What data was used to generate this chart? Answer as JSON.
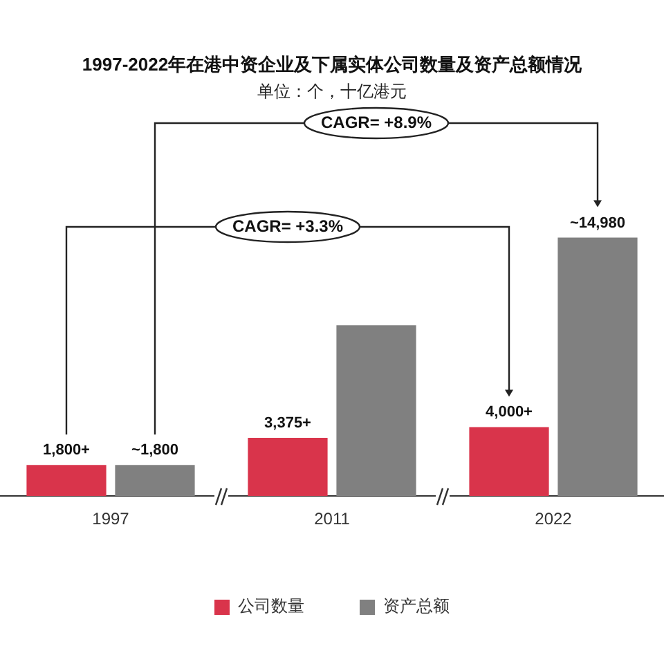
{
  "chart_data": {
    "type": "bar",
    "title": "1997-2022年在港中资企业及下属实体公司数量及资产总额情况",
    "subtitle": "单位：个，十亿港元",
    "categories": [
      "1997",
      "2011",
      "2022"
    ],
    "series": [
      {
        "name": "公司数量",
        "color": "#d9344b",
        "values": [
          1800,
          3375,
          4000
        ],
        "value_labels": [
          "1,800+",
          "3,375+",
          "4,000+"
        ]
      },
      {
        "name": "资产总额",
        "color": "#808080",
        "values": [
          1800,
          9900,
          14980
        ],
        "value_labels": [
          "~1,800",
          null,
          "~14,980"
        ]
      }
    ],
    "annotations": [
      "CAGR= +8.9%",
      "CAGR= +3.3%"
    ],
    "tick_labels": "x",
    "legend": "bottom",
    "grid": false
  }
}
